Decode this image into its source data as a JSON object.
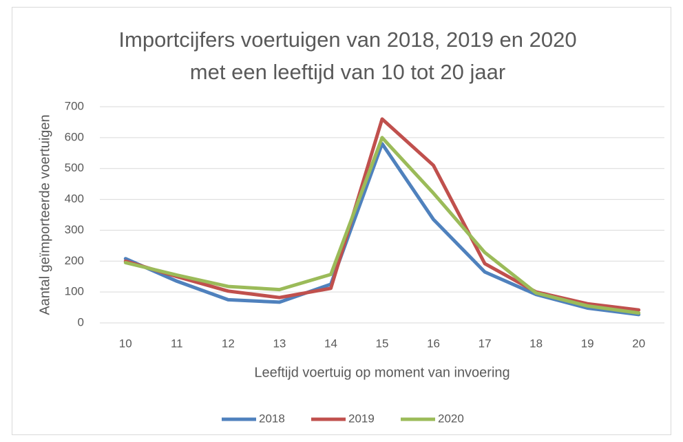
{
  "chart_data": {
    "type": "line",
    "title": [
      "Importcijfers voertuigen van 2018, 2019 en 2020",
      "met een leeftijd van 10 tot 20 jaar"
    ],
    "x_label": "Leeftijd voertuig op moment van invoering",
    "y_label": "Aantal geïmporteerde voertuigen",
    "categories": [
      "10",
      "11",
      "12",
      "13",
      "14",
      "15",
      "16",
      "17",
      "18",
      "19",
      "20"
    ],
    "series": [
      {
        "name": "2018",
        "color": "#4f81bd",
        "values": [
          208,
          135,
          75,
          67,
          125,
          580,
          335,
          165,
          92,
          48,
          27
        ]
      },
      {
        "name": "2019",
        "color": "#c0504d",
        "values": [
          200,
          150,
          103,
          82,
          112,
          660,
          510,
          192,
          100,
          62,
          42
        ]
      },
      {
        "name": "2020",
        "color": "#9bbb59",
        "values": [
          195,
          155,
          118,
          108,
          157,
          600,
          420,
          228,
          97,
          55,
          32
        ]
      }
    ],
    "ylim": [
      0,
      700
    ],
    "yticks": [
      0,
      100,
      200,
      300,
      400,
      500,
      600,
      700
    ],
    "grid": true,
    "legend": "bottom"
  }
}
